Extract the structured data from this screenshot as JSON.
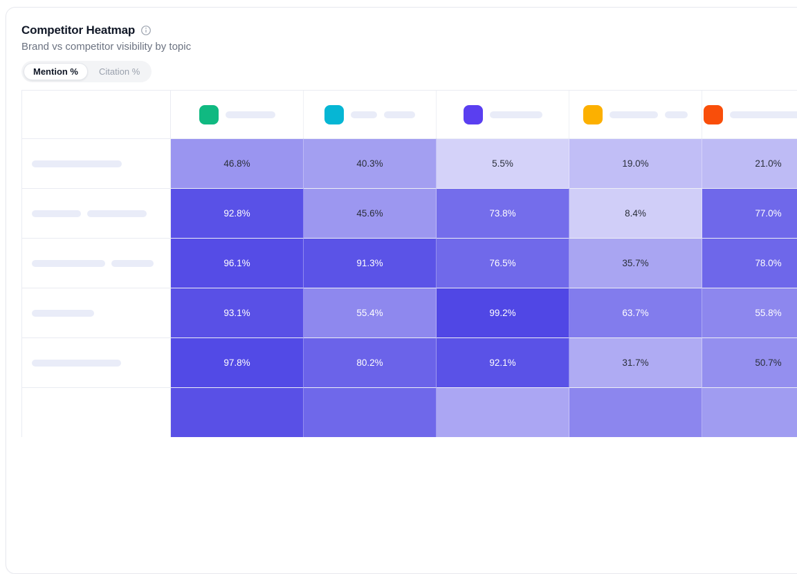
{
  "header": {
    "title": "Competitor Heatmap",
    "subtitle": "Brand vs competitor visibility by topic",
    "info_icon": "info-circle"
  },
  "toggle": {
    "options": [
      {
        "label": "Mention %",
        "active": true
      },
      {
        "label": "Citation %",
        "active": false
      }
    ]
  },
  "colors": {
    "heat_base": "#4f46e5",
    "placeholder_pill": "#e9ecf8",
    "grid_border": "#e9ebf2",
    "cell_text_dark": "#2a2f3a",
    "cell_text_light": "#ffffff"
  },
  "chart_data": {
    "type": "heatmap",
    "title": "Competitor Heatmap",
    "subtitle": "Brand vs competitor visibility by topic",
    "metric": "Mention %",
    "value_unit": "%",
    "value_range": [
      0,
      100
    ],
    "color_scale": "indigo #4f46e5 at opacity 0.2 + 0.8 * value/100 over white",
    "columns": [
      {
        "id": "competitor-1",
        "icon_color": "#10b981",
        "label_redacted": true,
        "pill_widths": [
          72
        ]
      },
      {
        "id": "competitor-2",
        "icon_color": "#06b6d4",
        "label_redacted": true,
        "pill_widths": [
          38,
          45
        ]
      },
      {
        "id": "competitor-3",
        "icon_color": "#5a3ff0",
        "label_redacted": true,
        "pill_widths": [
          76
        ]
      },
      {
        "id": "competitor-4",
        "icon_color": "#fcb000",
        "label_redacted": true,
        "pill_widths": [
          70,
          33
        ]
      },
      {
        "id": "competitor-5",
        "icon_color": "#f94e0a",
        "label_redacted": true,
        "pill_widths": [
          150
        ]
      }
    ],
    "rows": [
      {
        "id": "topic-1",
        "label_redacted": true,
        "pill_widths": [
          130
        ],
        "values": [
          46.8,
          40.3,
          5.5,
          19.0,
          21.0
        ],
        "display": [
          "46.8%",
          "40.3%",
          "5.5%",
          "19.0%",
          "21.0%"
        ]
      },
      {
        "id": "topic-2",
        "label_redacted": true,
        "pill_widths": [
          71,
          86
        ],
        "values": [
          92.8,
          45.6,
          73.8,
          8.4,
          77.0
        ],
        "display": [
          "92.8%",
          "45.6%",
          "73.8%",
          "8.4%",
          "77.0%"
        ]
      },
      {
        "id": "topic-3",
        "label_redacted": true,
        "pill_widths": [
          106,
          61
        ],
        "values": [
          96.1,
          91.3,
          76.5,
          35.7,
          78.0
        ],
        "display": [
          "96.1%",
          "91.3%",
          "76.5%",
          "35.7%",
          "78.0%"
        ]
      },
      {
        "id": "topic-4",
        "label_redacted": true,
        "pill_widths": [
          90
        ],
        "values": [
          93.1,
          55.4,
          99.2,
          63.7,
          55.8
        ],
        "display": [
          "93.1%",
          "55.4%",
          "99.2%",
          "63.7%",
          "55.8%"
        ]
      },
      {
        "id": "topic-5",
        "label_redacted": true,
        "pill_widths": [
          129
        ],
        "values": [
          97.8,
          80.2,
          92.1,
          31.7,
          50.7
        ],
        "display": [
          "97.8%",
          "80.2%",
          "92.1%",
          "31.7%",
          "50.7%"
        ]
      },
      {
        "id": "topic-6",
        "label_redacted": true,
        "partial": true,
        "estimated": true,
        "pill_widths": [],
        "values": [
          93,
          77,
          35,
          57,
          42
        ],
        "display": [
          "",
          "",
          "",
          "",
          ""
        ]
      }
    ]
  }
}
